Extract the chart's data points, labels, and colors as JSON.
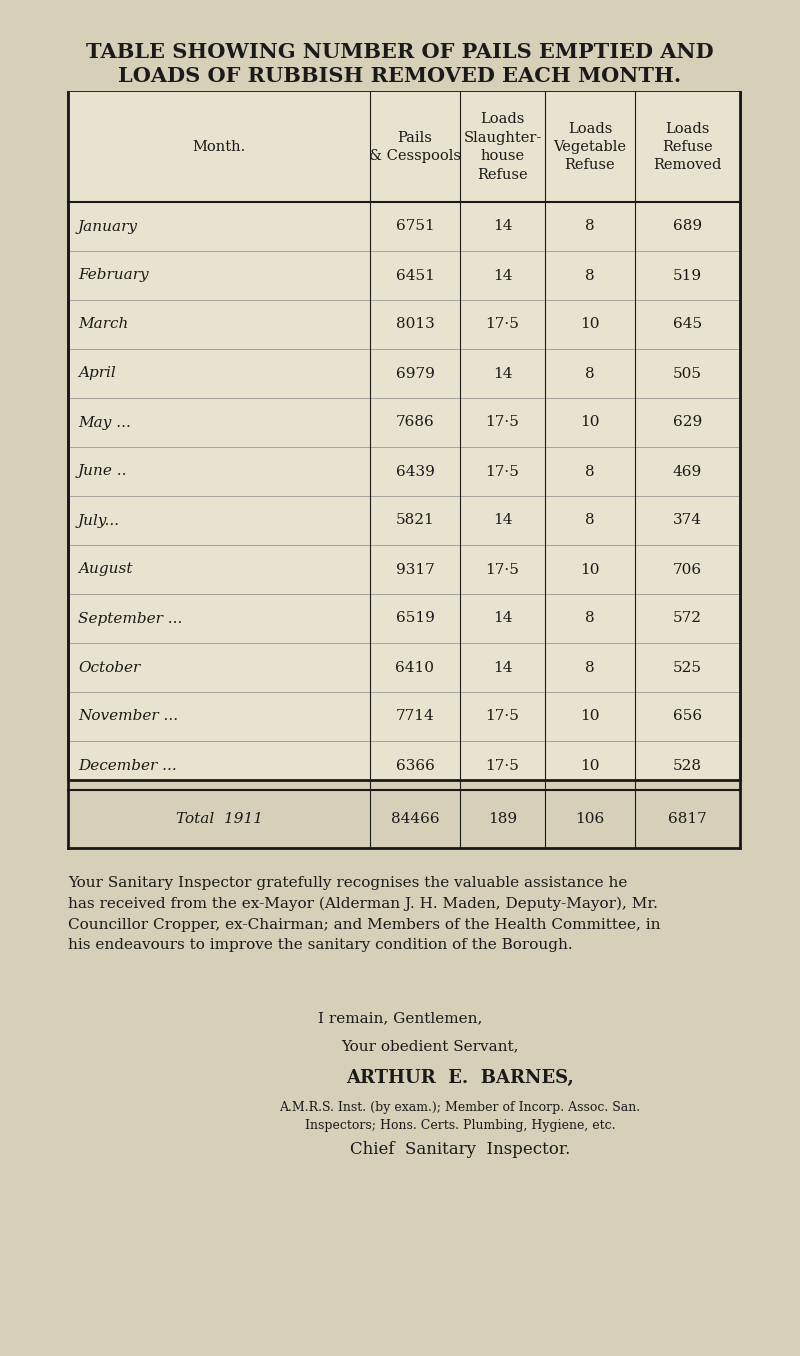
{
  "title_line1": "TABLE SHOWING NUMBER OF PAILS EMPTIED AND",
  "title_line2": "LOADS OF RUBBISH REMOVED EACH MONTH.",
  "bg_color": "#d6d0b8",
  "table_bg": "#e8e3ce",
  "header_row": [
    "Month.",
    "Pails\n& Cesspools",
    "Loads\nSlaughter-\nhouse\nRefuse",
    "Loads\nVegetable\nRefuse",
    "Loads\nRefuse\nRemoved"
  ],
  "months": [
    [
      "January",
      "...",
      "..",
      "6751",
      "14",
      "8",
      "689"
    ],
    [
      "February",
      "...",
      "...",
      "6451",
      "14",
      "8",
      "519"
    ],
    [
      "March",
      "...",
      "...",
      "8013",
      "17·5",
      "10",
      "645"
    ],
    [
      "April",
      "...",
      "...",
      "6979",
      "14",
      "8",
      "505"
    ],
    [
      "May ...",
      "...",
      "..",
      "7686",
      "17·5",
      "10",
      "629"
    ],
    [
      "June ..",
      "...",
      "..",
      "6439",
      "17·5",
      "8",
      "469"
    ],
    [
      "July...",
      "...",
      "...",
      "5821",
      "14",
      "8",
      "374"
    ],
    [
      "August",
      "...",
      "..",
      "9317",
      "17·5",
      "10",
      "706"
    ],
    [
      "September ...",
      "...",
      "...",
      "6519",
      "14",
      "8",
      "572"
    ],
    [
      "October",
      "...",
      "...",
      "6410",
      "14",
      "8",
      "525"
    ],
    [
      "November ...",
      "...",
      "...",
      "7714",
      "17·5",
      "10",
      "656"
    ],
    [
      "December ...",
      "...",
      "...",
      "6366",
      "17·5",
      "10",
      "528"
    ]
  ],
  "total_row": [
    "Total  1911",
    "..",
    "84466",
    "189",
    "106",
    "6817"
  ],
  "para_text": "Your Sanitary Inspector gratefully recognises the valuable assistance he has received from the ex-Mayor (Alderman J. H. Maden, Deputy-Mayor), Mr. Councillor Cropper, ex-Chairman; and Members of the Health Committee, in his endeavours to improve the sanitary condition of the Borough.",
  "closing1": "I remain, Gentlemen,",
  "closing2": "Your obedient Servant,",
  "closing3": "ARTHUR  E.  BARNES,",
  "closing4": "A.M.R.S. Inst. (by exam.); Member of Incorp. Assoc. San.\nInspectors; Hons. Certs. Plumbing, Hygiene, etc.",
  "closing5": "Chief  Sanitary  Inspector."
}
